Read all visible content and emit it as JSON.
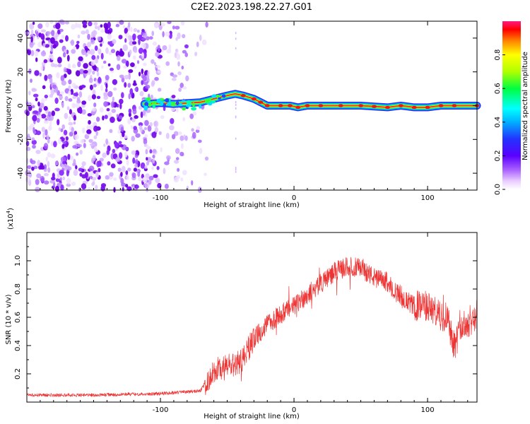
{
  "title": "C2E2.2023.198.22.27.G01",
  "chart_data": [
    {
      "type": "heatmap",
      "xlabel": "Height of straight line (km)",
      "ylabel": "Frequency (Hz)",
      "xlim": [
        -200,
        137
      ],
      "ylim": [
        -50,
        50
      ],
      "x_ticks": [
        "-100",
        "0",
        "100"
      ],
      "y_ticks": [
        "40",
        "20",
        "0",
        "-20",
        "-40"
      ],
      "colorbar": {
        "label": "Normalized spectral amplitude",
        "range": [
          0,
          1
        ],
        "ticks": [
          "0.0",
          "0.2",
          "0.4",
          "0.6",
          "0.8"
        ]
      },
      "ridge": [
        {
          "x": -112,
          "y": 1
        },
        {
          "x": -100,
          "y": 1.5
        },
        {
          "x": -90,
          "y": 1
        },
        {
          "x": -80,
          "y": 1.5
        },
        {
          "x": -70,
          "y": 2
        },
        {
          "x": -60,
          "y": 4
        },
        {
          "x": -50,
          "y": 6
        },
        {
          "x": -44,
          "y": 7
        },
        {
          "x": -38,
          "y": 6
        },
        {
          "x": -30,
          "y": 4
        },
        {
          "x": -25,
          "y": 2
        },
        {
          "x": -20,
          "y": 0
        },
        {
          "x": -10,
          "y": 0
        },
        {
          "x": -3,
          "y": 0
        },
        {
          "x": 3,
          "y": -1
        },
        {
          "x": 10,
          "y": 0
        },
        {
          "x": 20,
          "y": 0
        },
        {
          "x": 35,
          "y": 0
        },
        {
          "x": 50,
          "y": 0
        },
        {
          "x": 60,
          "y": -0.5
        },
        {
          "x": 70,
          "y": -1
        },
        {
          "x": 80,
          "y": 0
        },
        {
          "x": 90,
          "y": -1
        },
        {
          "x": 100,
          "y": -1
        },
        {
          "x": 110,
          "y": 0
        },
        {
          "x": 120,
          "y": 0
        },
        {
          "x": 137,
          "y": 0
        }
      ]
    },
    {
      "type": "line",
      "xlabel": "Height of straight line (km)",
      "ylabel": "SNR (10 * v/v)",
      "y_multiplier": "(x10",
      "y_multiplier_exp": "4",
      "y_multiplier_close": ")",
      "xlim": [
        -200,
        137
      ],
      "ylim": [
        0,
        1.2
      ],
      "x_ticks": [
        "-100",
        "0",
        "100"
      ],
      "y_ticks": [
        "1.0",
        "0.8",
        "0.6",
        "0.4",
        "0.2"
      ],
      "series": [
        {
          "color": "#ee3333",
          "envelope": [
            [
              -200,
              0.05
            ],
            [
              -150,
              0.05
            ],
            [
              -100,
              0.06
            ],
            [
              -70,
              0.08
            ],
            [
              -60,
              0.22
            ],
            [
              -50,
              0.25
            ],
            [
              -40,
              0.28
            ],
            [
              -30,
              0.45
            ],
            [
              -20,
              0.55
            ],
            [
              -10,
              0.62
            ],
            [
              0,
              0.68
            ],
            [
              10,
              0.76
            ],
            [
              20,
              0.84
            ],
            [
              30,
              0.92
            ],
            [
              40,
              0.96
            ],
            [
              50,
              0.95
            ],
            [
              60,
              0.88
            ],
            [
              70,
              0.85
            ],
            [
              80,
              0.74
            ],
            [
              90,
              0.68
            ],
            [
              100,
              0.68
            ],
            [
              110,
              0.6
            ],
            [
              115,
              0.62
            ],
            [
              120,
              0.4
            ],
            [
              125,
              0.52
            ],
            [
              137,
              0.62
            ]
          ]
        }
      ]
    }
  ]
}
